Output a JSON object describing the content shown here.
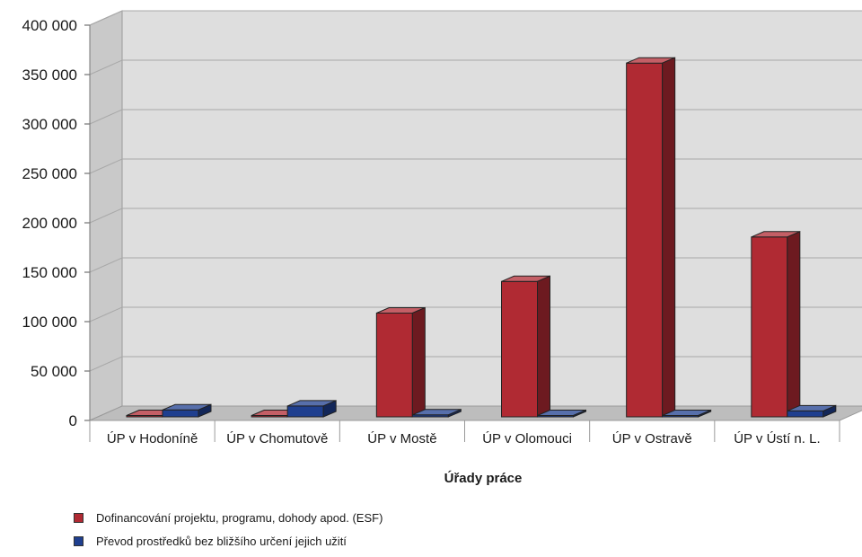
{
  "chart_data": {
    "type": "bar",
    "title": "",
    "xlabel": "Úřady práce",
    "ylabel": "",
    "ylim": [
      0,
      400000
    ],
    "yticks": [
      0,
      50000,
      100000,
      150000,
      200000,
      250000,
      300000,
      350000,
      400000
    ],
    "ytick_labels": [
      "0",
      "50 000",
      "100 000",
      "150 000",
      "200 000",
      "250 000",
      "300 000",
      "350 000",
      "400 000"
    ],
    "categories": [
      "ÚP v Hodoníně",
      "ÚP v Chomutově",
      "ÚP v Mostě",
      "ÚP v Olomouci",
      "ÚP v Ostravě",
      "ÚP v Ústí n. L."
    ],
    "series": [
      {
        "name": "Dofinancování projektu, programu, dohody  apod. (ESF)",
        "color": "#b02a33",
        "values": [
          1000,
          1000,
          105000,
          137000,
          358000,
          182000
        ]
      },
      {
        "name": "Převod prostředků bez bližšího určení jejich užití",
        "color": "#1f3f8f",
        "values": [
          7000,
          11000,
          2000,
          1000,
          1000,
          6000
        ]
      }
    ],
    "grid": true,
    "legend_position": "bottom-left",
    "style": "3d"
  }
}
